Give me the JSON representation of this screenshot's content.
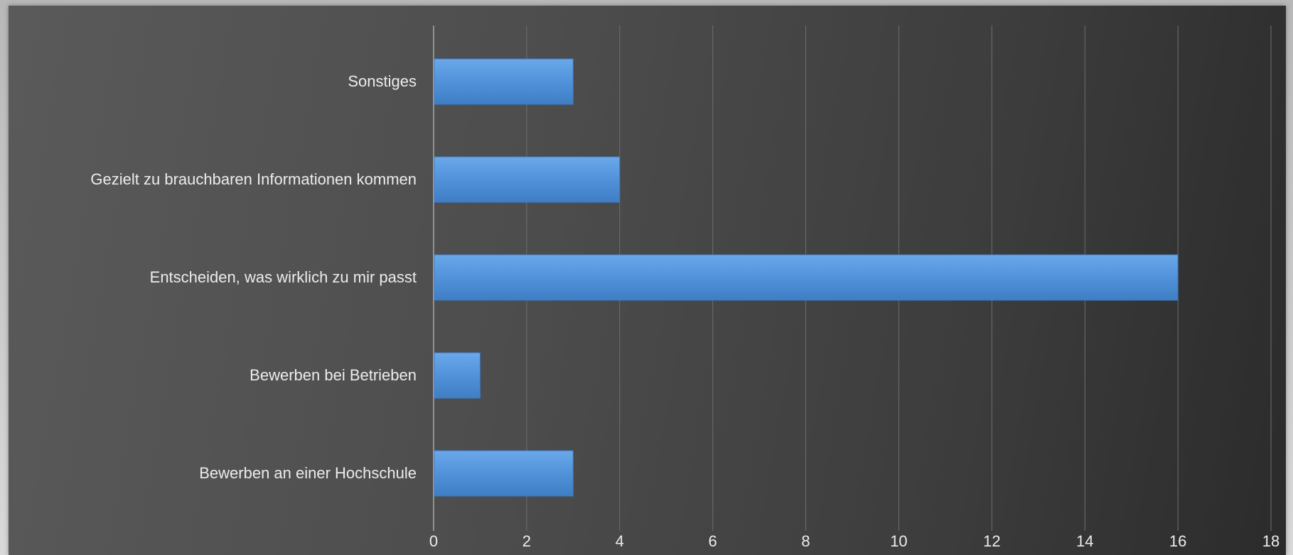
{
  "chart_data": {
    "type": "bar",
    "orientation": "horizontal",
    "title": "",
    "xlabel": "",
    "ylabel": "",
    "categories": [
      "Sonstiges",
      "Gezielt zu brauchbaren Informationen kommen",
      "Entscheiden, was wirklich zu mir passt",
      "Bewerben bei Betrieben",
      "Bewerben an einer Hochschule"
    ],
    "values": [
      3,
      4,
      16,
      1,
      3
    ],
    "xlim": [
      0,
      18
    ],
    "xticks": [
      "0",
      "2",
      "4",
      "6",
      "8",
      "10",
      "12",
      "14",
      "16",
      "18"
    ],
    "grid": true,
    "legend": "none",
    "colors": {
      "bar": "#4f90d8",
      "bar_highlight": "#6aa8ea",
      "background": "#4a4a4a",
      "grid": "#6e6e6e",
      "text": "#ececec"
    }
  }
}
